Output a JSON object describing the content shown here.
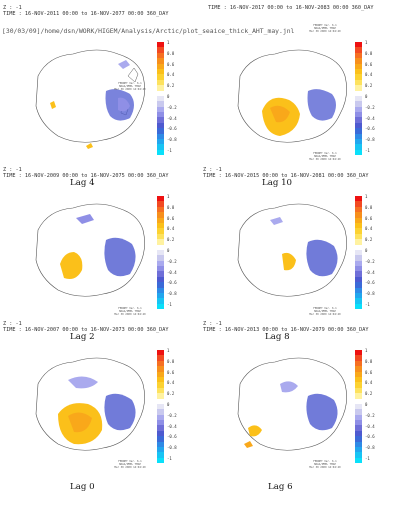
{
  "path_label": "[30/03/09]/home/dsn/WORK/HIGEM/Analysis/Arctic/plot_seaice_thick_AHT_may.jnl",
  "ferret_credit": [
    "FERRET Ver. 6.1",
    "NOAA/PMEL TMAP",
    "Mar 30 2009 14:04:49"
  ],
  "colorbar": {
    "ticks": [
      "1",
      "0.8",
      "0.6",
      "0.4",
      "0.2",
      "0",
      "-0.2",
      "-0.4",
      "-0.6",
      "-0.8",
      "-1"
    ],
    "colors": [
      "#ee1111",
      "#f24a22",
      "#f66f22",
      "#f78f1c",
      "#f9a81a",
      "#fbc01a",
      "#fcd232",
      "#fde25e",
      "#fff2a0",
      "#ffffff",
      "#e6e6f5",
      "#c9c9ee",
      "#aaaaee",
      "#8f8fe6",
      "#6f6fd8",
      "#4e5ad0",
      "#3b6ad8",
      "#2f8ae6",
      "#22a6ee",
      "#18c4f4",
      "#0ae0fa"
    ]
  },
  "panels": [
    {
      "header_z": "Z : -1",
      "header_time": "TIME : 16-NOV-2011 00:00 to 16-NOV-2077 00:00 360_DAY",
      "lag": "Lag 4",
      "blob": "small"
    },
    {
      "header_z": "",
      "header_time": "TIME : 16-NOV-2017 00:00 to 16-NOV-2083 00:00 360_DAY",
      "lag": "Lag 10",
      "blob": "large"
    },
    {
      "header_z": "Z : -1",
      "header_time": "TIME : 16-NOV-2009 00:00 to 16-NOV-2075 00:00 360_DAY",
      "lag": "Lag 2",
      "blob": "medium"
    },
    {
      "header_z": "Z : -1",
      "header_time": "TIME : 16-NOV-2015 00:00 to 16-NOV-2081 00:00 360_DAY",
      "lag": "Lag 8",
      "blob": "medium2"
    },
    {
      "header_z": "Z : -1",
      "header_time": "TIME : 16-NOV-2007 00:00 to 16-NOV-2073 00:00 360_DAY",
      "lag": "Lag 0",
      "blob": "xl"
    },
    {
      "header_z": "Z : -1",
      "header_time": "TIME : 16-NOV-2013 00:00 to 16-NOV-2079 00:00 360_DAY",
      "lag": "Lag 6",
      "blob": "small2"
    }
  ]
}
